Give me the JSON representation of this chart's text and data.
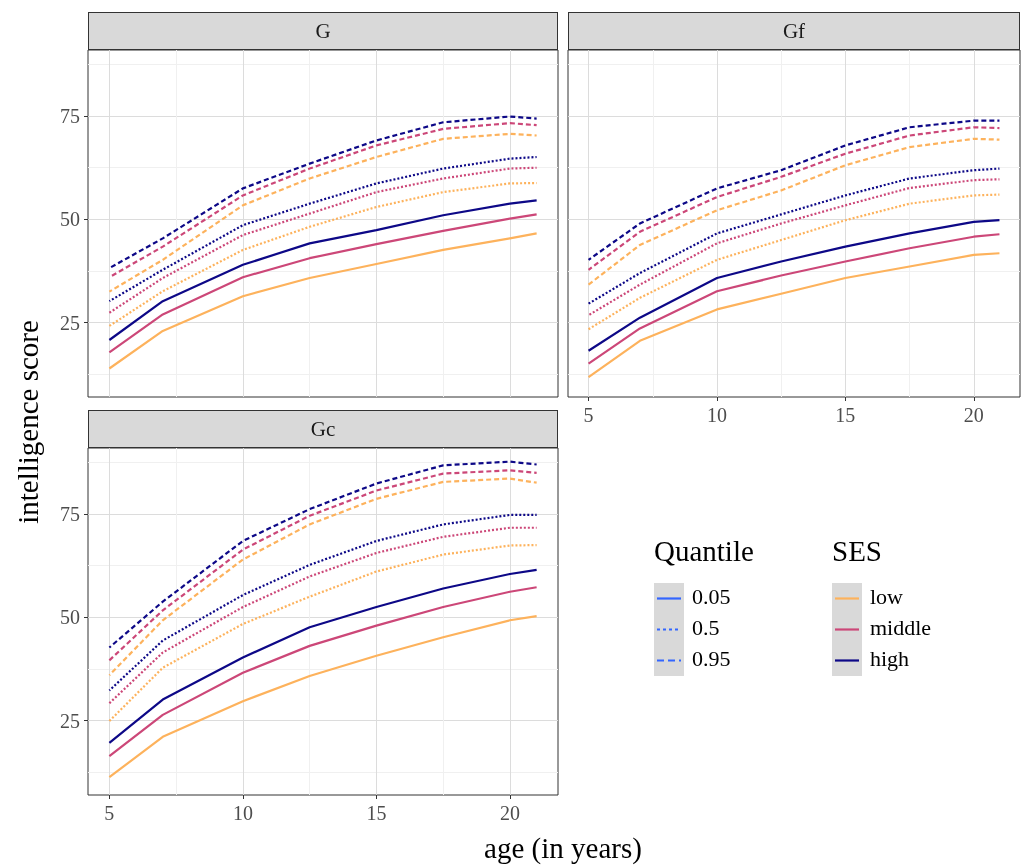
{
  "chart_data": [
    {
      "type": "line",
      "title": "G",
      "x": [
        5,
        7,
        10,
        12.5,
        15,
        17.5,
        20,
        21
      ],
      "xlim": [
        4.2,
        21.8
      ],
      "xticks": [
        5,
        10,
        15,
        20
      ],
      "ylim": [
        7,
        91
      ],
      "yticks": [
        25,
        50,
        75
      ],
      "grid": true,
      "tick_labels": "y",
      "series": [
        {
          "color": "#fdb25c",
          "line_style": "solid",
          "values": [
            13.9,
            23,
            31.4,
            35.8,
            39.2,
            42.6,
            45.4,
            46.6
          ]
        },
        {
          "color": "#cc4778",
          "line_style": "solid",
          "values": [
            17.8,
            27,
            36,
            40.6,
            44,
            47.2,
            50.2,
            51.2
          ]
        },
        {
          "color": "#0d0887",
          "line_style": "solid",
          "values": [
            20.8,
            30.2,
            39,
            44.2,
            47.4,
            51,
            53.8,
            54.6
          ]
        },
        {
          "color": "#fdb25c",
          "line_style": "dotted",
          "values": [
            24.2,
            32.6,
            42.6,
            48.2,
            53,
            56.6,
            58.7,
            58.8
          ]
        },
        {
          "color": "#cc4778",
          "line_style": "dotted",
          "values": [
            27.4,
            35.8,
            46.2,
            51.4,
            56.6,
            59.9,
            62.3,
            62.5
          ]
        },
        {
          "color": "#0d0887",
          "line_style": "dotted",
          "values": [
            30.2,
            37.8,
            48.6,
            53.8,
            58.7,
            62.3,
            64.7,
            65.1
          ]
        },
        {
          "color": "#fdb25c",
          "line_style": "dashed",
          "values": [
            32.5,
            40.2,
            53.4,
            59.9,
            65.1,
            69.5,
            70.7,
            70.3
          ]
        },
        {
          "color": "#cc4778",
          "line_style": "dashed",
          "values": [
            36,
            43.4,
            55.8,
            62.3,
            67.9,
            71.9,
            73.3,
            72.8
          ]
        },
        {
          "color": "#0d0887",
          "line_style": "dashed",
          "values": [
            38.2,
            45.4,
            57.5,
            63.5,
            69.1,
            73.5,
            74.9,
            74.4
          ]
        }
      ]
    },
    {
      "type": "line",
      "title": "Gf",
      "x": [
        5,
        7,
        10,
        12.5,
        15,
        17.5,
        20,
        21
      ],
      "xlim": [
        4.2,
        21.8
      ],
      "xticks": [
        5,
        10,
        15,
        20
      ],
      "ylim": [
        7,
        91
      ],
      "yticks": [
        25,
        50,
        75
      ],
      "grid": true,
      "tick_labels": "x",
      "series": [
        {
          "color": "#fdb25c",
          "line_style": "solid",
          "values": [
            11.8,
            20.6,
            28.2,
            32,
            35.8,
            38.6,
            41.4,
            41.8
          ]
        },
        {
          "color": "#cc4778",
          "line_style": "solid",
          "values": [
            15.1,
            23.6,
            32.6,
            36.4,
            39.8,
            43,
            45.8,
            46.4
          ]
        },
        {
          "color": "#0d0887",
          "line_style": "solid",
          "values": [
            18.2,
            26.2,
            35.8,
            39.8,
            43.4,
            46.6,
            49.4,
            49.8
          ]
        },
        {
          "color": "#fdb25c",
          "line_style": "dotted",
          "values": [
            23.4,
            31,
            40.2,
            45,
            49.8,
            53.8,
            55.8,
            56
          ]
        },
        {
          "color": "#cc4778",
          "line_style": "dotted",
          "values": [
            26.8,
            34.2,
            44.2,
            49,
            53.4,
            57.6,
            59.5,
            59.7
          ]
        },
        {
          "color": "#0d0887",
          "line_style": "dotted",
          "values": [
            29.6,
            37,
            46.6,
            51.2,
            55.8,
            59.9,
            61.9,
            62.3
          ]
        },
        {
          "color": "#fdb25c",
          "line_style": "dashed",
          "values": [
            34.2,
            43.8,
            52.2,
            57,
            63.1,
            67.5,
            69.5,
            69.3
          ]
        },
        {
          "color": "#cc4778",
          "line_style": "dashed",
          "values": [
            37.8,
            47,
            55.4,
            60.3,
            65.9,
            70.3,
            72.3,
            72.1
          ]
        },
        {
          "color": "#0d0887",
          "line_style": "dashed",
          "values": [
            40.2,
            49,
            57.5,
            61.9,
            67.9,
            72.3,
            73.9,
            73.9
          ]
        }
      ]
    },
    {
      "type": "line",
      "title": "Gc",
      "xlabel": "age (in years)",
      "ylabel": "intelligence score",
      "x": [
        5,
        7,
        10,
        12.5,
        15,
        17.5,
        20,
        21
      ],
      "xlim": [
        4.2,
        21.8
      ],
      "xticks": [
        5,
        10,
        15,
        20
      ],
      "ylim": [
        7,
        91
      ],
      "yticks": [
        25,
        50,
        75
      ],
      "grid": true,
      "series": [
        {
          "color": "#fdb25c",
          "line_style": "solid",
          "values": [
            11.3,
            21.1,
            29.7,
            35.8,
            40.7,
            45.2,
            49.3,
            50.3
          ]
        },
        {
          "color": "#cc4778",
          "line_style": "solid",
          "values": [
            16.4,
            26.4,
            36.6,
            43.1,
            48,
            52.5,
            56.2,
            57.3
          ]
        },
        {
          "color": "#0d0887",
          "line_style": "solid",
          "values": [
            19.6,
            30.1,
            40.3,
            47.6,
            52.5,
            57,
            60.5,
            61.5
          ]
        },
        {
          "color": "#fdb25c",
          "line_style": "dotted",
          "values": [
            24.9,
            37.8,
            48.4,
            55,
            61.1,
            65.2,
            67.4,
            67.5
          ]
        },
        {
          "color": "#cc4778",
          "line_style": "dotted",
          "values": [
            29.2,
            41.5,
            52.5,
            59.9,
            65.6,
            69.5,
            71.7,
            71.7
          ]
        },
        {
          "color": "#0d0887",
          "line_style": "dotted",
          "values": [
            32.3,
            44.4,
            55.4,
            62.7,
            68.5,
            72.5,
            74.8,
            74.8
          ]
        },
        {
          "color": "#fdb25c",
          "line_style": "dashed",
          "values": [
            36,
            49.3,
            64,
            72.5,
            78.7,
            82.8,
            83.6,
            82.6
          ]
        },
        {
          "color": "#cc4778",
          "line_style": "dashed",
          "values": [
            39.6,
            51.7,
            66.4,
            74.6,
            80.7,
            84.8,
            85.6,
            85
          ]
        },
        {
          "color": "#0d0887",
          "line_style": "dashed",
          "values": [
            42.7,
            53.8,
            68.5,
            76.2,
            82.4,
            86.8,
            87.7,
            87
          ]
        }
      ]
    },
    {
      "type": "other",
      "annotations": [
        "Quantile",
        "0.05",
        "0.5",
        "0.95",
        "SES",
        "low",
        "middle",
        "high"
      ]
    }
  ]
}
